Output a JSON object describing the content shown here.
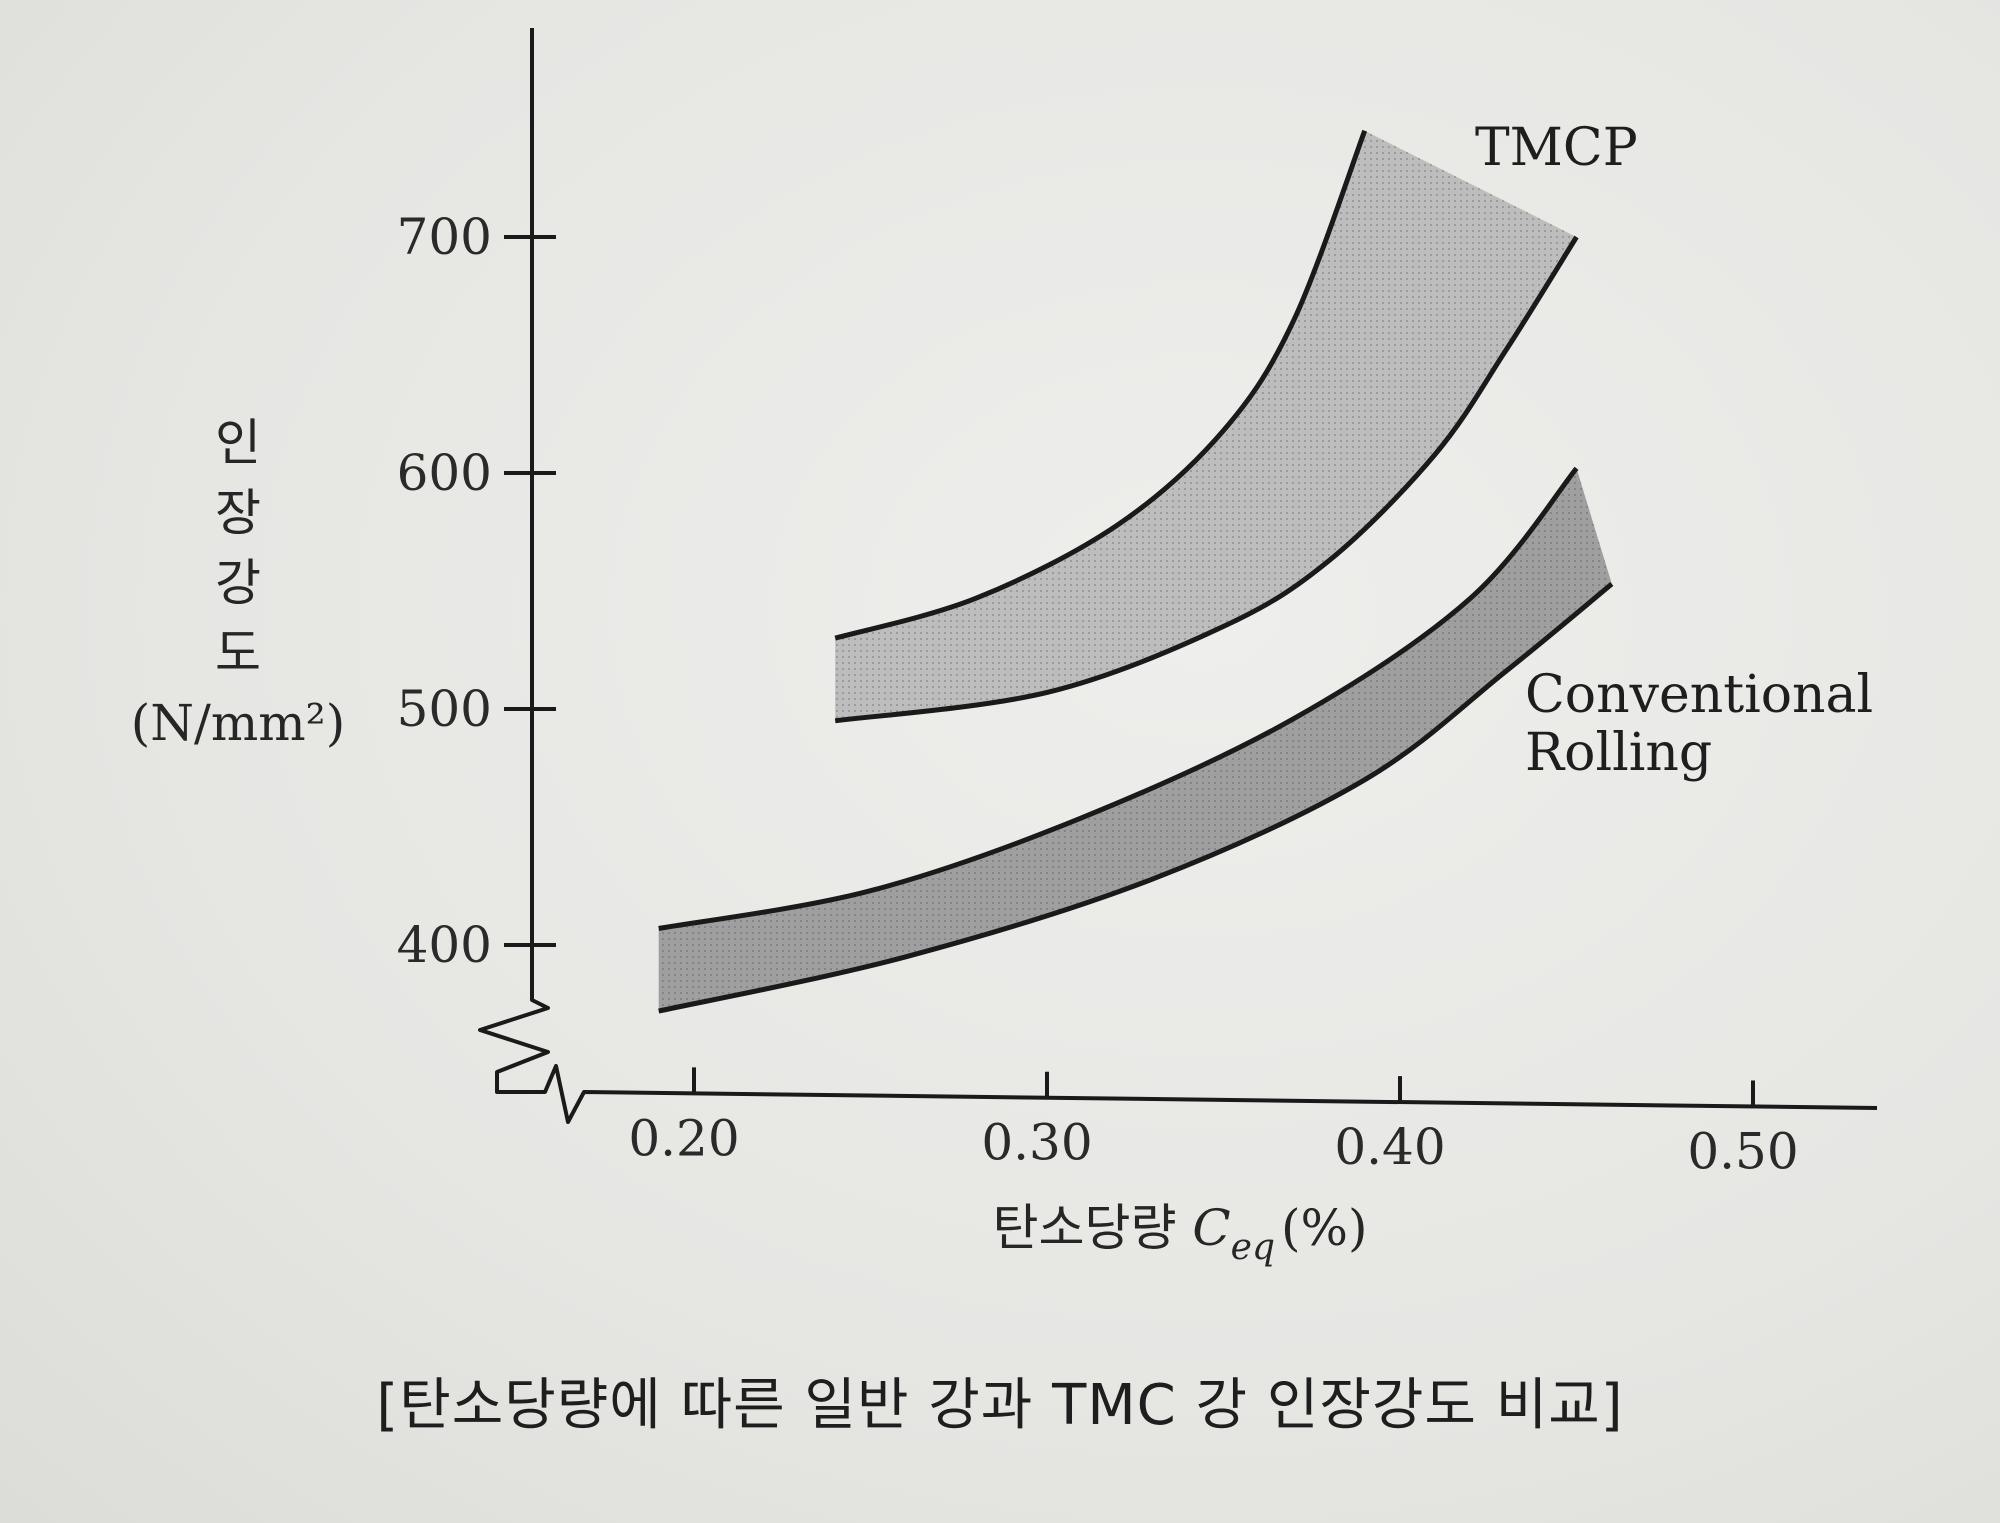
{
  "chart_data": {
    "type": "area",
    "xlabel": "탄소당량 ",
    "xlabel_symbol": "C",
    "xlabel_subscript": "eq",
    "xlabel_unit": "(%)",
    "ylabel_lines": [
      "인",
      "장",
      "강",
      "도",
      "(N/mm²)"
    ],
    "x_ticks": [
      "0.20",
      "0.30",
      "0.40",
      "0.50"
    ],
    "x_tick_values": [
      0.2,
      0.3,
      0.4,
      0.5
    ],
    "y_ticks": [
      "400",
      "500",
      "600",
      "700"
    ],
    "y_tick_values": [
      400,
      500,
      600,
      700
    ],
    "xlim": [
      0.15,
      0.53
    ],
    "ylim": [
      350,
      750
    ],
    "axis_break": true,
    "grid": false,
    "series": [
      {
        "name": "TMCP",
        "color": "#bdbdbd",
        "upper": [
          {
            "x": 0.24,
            "y": 530
          },
          {
            "x": 0.28,
            "y": 547
          },
          {
            "x": 0.32,
            "y": 578
          },
          {
            "x": 0.35,
            "y": 618
          },
          {
            "x": 0.37,
            "y": 665
          },
          {
            "x": 0.39,
            "y": 745
          }
        ],
        "lower": [
          {
            "x": 0.24,
            "y": 495
          },
          {
            "x": 0.3,
            "y": 507
          },
          {
            "x": 0.35,
            "y": 535
          },
          {
            "x": 0.38,
            "y": 563
          },
          {
            "x": 0.41,
            "y": 608
          },
          {
            "x": 0.43,
            "y": 652
          },
          {
            "x": 0.45,
            "y": 700
          }
        ]
      },
      {
        "name": "Conventional Rolling",
        "name_lines": [
          "Conventional",
          "Rolling"
        ],
        "color": "#9f9f9f",
        "upper": [
          {
            "x": 0.19,
            "y": 407
          },
          {
            "x": 0.25,
            "y": 423
          },
          {
            "x": 0.31,
            "y": 454
          },
          {
            "x": 0.37,
            "y": 496
          },
          {
            "x": 0.42,
            "y": 547
          },
          {
            "x": 0.45,
            "y": 602
          }
        ],
        "lower": [
          {
            "x": 0.19,
            "y": 372
          },
          {
            "x": 0.26,
            "y": 395
          },
          {
            "x": 0.33,
            "y": 428
          },
          {
            "x": 0.39,
            "y": 470
          },
          {
            "x": 0.43,
            "y": 516
          },
          {
            "x": 0.46,
            "y": 553
          }
        ]
      }
    ]
  },
  "caption": "[탄소당량에 따른 일반 강과 TMC 강 인장강도 비교]"
}
